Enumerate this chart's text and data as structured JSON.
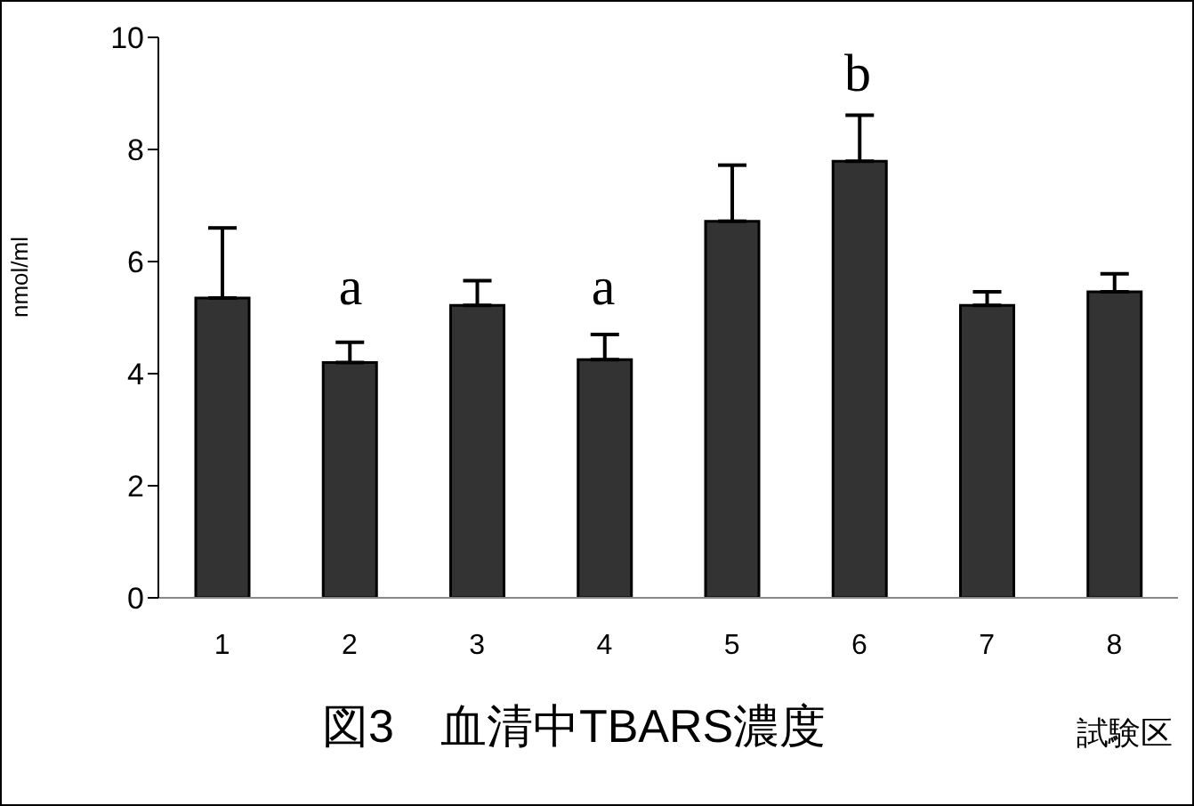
{
  "chart_data": {
    "type": "bar",
    "title": "図3　血清中TBARS濃度",
    "xlabel": "試験区",
    "ylabel": "nmol/ml",
    "categories": [
      "1",
      "2",
      "3",
      "4",
      "5",
      "6",
      "7",
      "8"
    ],
    "values": [
      5.35,
      4.2,
      5.22,
      4.25,
      6.72,
      7.79,
      5.22,
      5.46
    ],
    "errors": [
      1.25,
      0.36,
      0.44,
      0.45,
      1.0,
      0.82,
      0.24,
      0.32
    ],
    "color": "#333333",
    "ylim": [
      0,
      10
    ],
    "yticks": [
      0,
      2,
      4,
      6,
      8,
      10
    ],
    "grid": false,
    "legend": false,
    "annotations": [
      "a",
      "a",
      "b"
    ]
  }
}
